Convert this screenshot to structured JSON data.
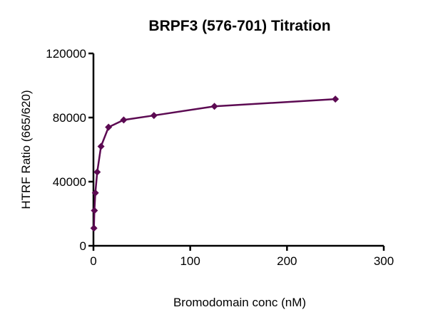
{
  "chart_data": {
    "type": "line",
    "title": "BRPF3 (576-701) Titration",
    "xlabel": "Bromodomain conc (nM)",
    "ylabel": "HTRF Ratio (665/620)",
    "xlim": [
      0,
      300
    ],
    "ylim": [
      0,
      120000
    ],
    "xticks": [
      0,
      100,
      200,
      300
    ],
    "yticks": [
      0,
      40000,
      80000,
      120000
    ],
    "grid": false,
    "color": "#5c0a52",
    "marker": "diamond",
    "x": [
      0.49,
      0.98,
      1.95,
      3.9,
      7.8,
      15.6,
      31.25,
      62.5,
      125,
      250
    ],
    "y": [
      11000,
      22000,
      33000,
      46000,
      62000,
      74000,
      78500,
      81300,
      87000,
      91500
    ]
  }
}
